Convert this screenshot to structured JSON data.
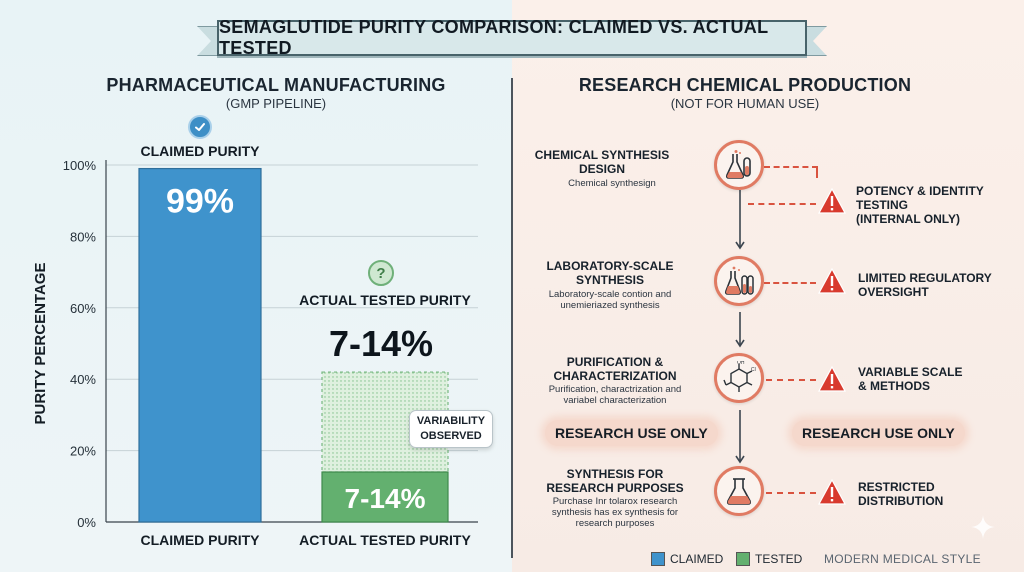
{
  "banner": {
    "title": "SEMAGLUTIDE PURITY COMPARISON: CLAIMED VS. ACTUAL TESTED"
  },
  "left": {
    "title": "PHARMACEUTICAL MANUFACTURING",
    "subtitle": "(GMP PIPELINE)",
    "claimed_label": "CLAIMED PURITY",
    "actual_label": "ACTUAL TESTED PURITY",
    "actual_big": "7-14%",
    "variability": [
      "VARIABILITY",
      "OBSERVED"
    ]
  },
  "chart_data": {
    "type": "bar",
    "categories": [
      "CLAIMED PURITY",
      "ACTUAL TESTED PURITY"
    ],
    "series": [
      {
        "name": "CLAIMED",
        "values": [
          99,
          null
        ],
        "color": "#3f93cc"
      },
      {
        "name": "TESTED",
        "values": [
          null,
          14
        ],
        "color": "#63b06f"
      }
    ],
    "value_labels": [
      "99%",
      "7-14%"
    ],
    "tested_range": [
      7,
      14
    ],
    "variability_band_top": 42,
    "ylabel": "PURITY PERCENTAGE",
    "yticks": [
      "0%",
      "20%",
      "40%",
      "60%",
      "80%",
      "100%"
    ],
    "ylim": [
      0,
      100
    ],
    "grid": true
  },
  "right": {
    "title": "RESEARCH CHEMICAL PRODUCTION",
    "subtitle": "(NOT FOR HUMAN USE)",
    "steps": [
      {
        "title": [
          "CHEMICAL SYNTHESIS",
          "DESIGN"
        ],
        "desc": [
          "Chemical synthesign"
        ],
        "icon": "flask-beakers-icon"
      },
      {
        "title": [
          "LABORATORY-SCALE",
          "SYNTHESIS"
        ],
        "desc": [
          "Laboratory-scale contion and",
          "unemieriazed synthesis"
        ],
        "icon": "lab-glassware-icon"
      },
      {
        "title": [
          "PURIFICATION &",
          "CHARACTERIZATION"
        ],
        "desc": [
          "Purification, charactrization and",
          "variabel characterization"
        ],
        "icon": "molecule-icon"
      },
      {
        "title": [
          "SYNTHESIS FOR",
          "RESEARCH PURPOSES"
        ],
        "desc": [
          "Purchase Inr tolarox research",
          "synthesis has ex synthesis for",
          "research purposes"
        ],
        "icon": "flask-icon"
      }
    ],
    "warnings": [
      [
        "POTENCY & IDENTITY",
        "TESTING",
        "(INTERNAL ONLY)"
      ],
      [
        "LIMITED REGULATORY",
        "OVERSIGHT"
      ],
      [
        "VARIABLE SCALE",
        "& METHODS"
      ],
      [
        "RESTRICTED",
        "DISTRIBUTION"
      ]
    ],
    "research_use": "RESEARCH USE ONLY"
  },
  "legend": {
    "claimed": "CLAIMED",
    "tested": "TESTED",
    "style_note": "MODERN MEDICAL STYLE"
  },
  "colors": {
    "claimed": "#3f93cc",
    "tested": "#63b06f",
    "accent": "#e07b63",
    "warning": "#d83a2e"
  }
}
